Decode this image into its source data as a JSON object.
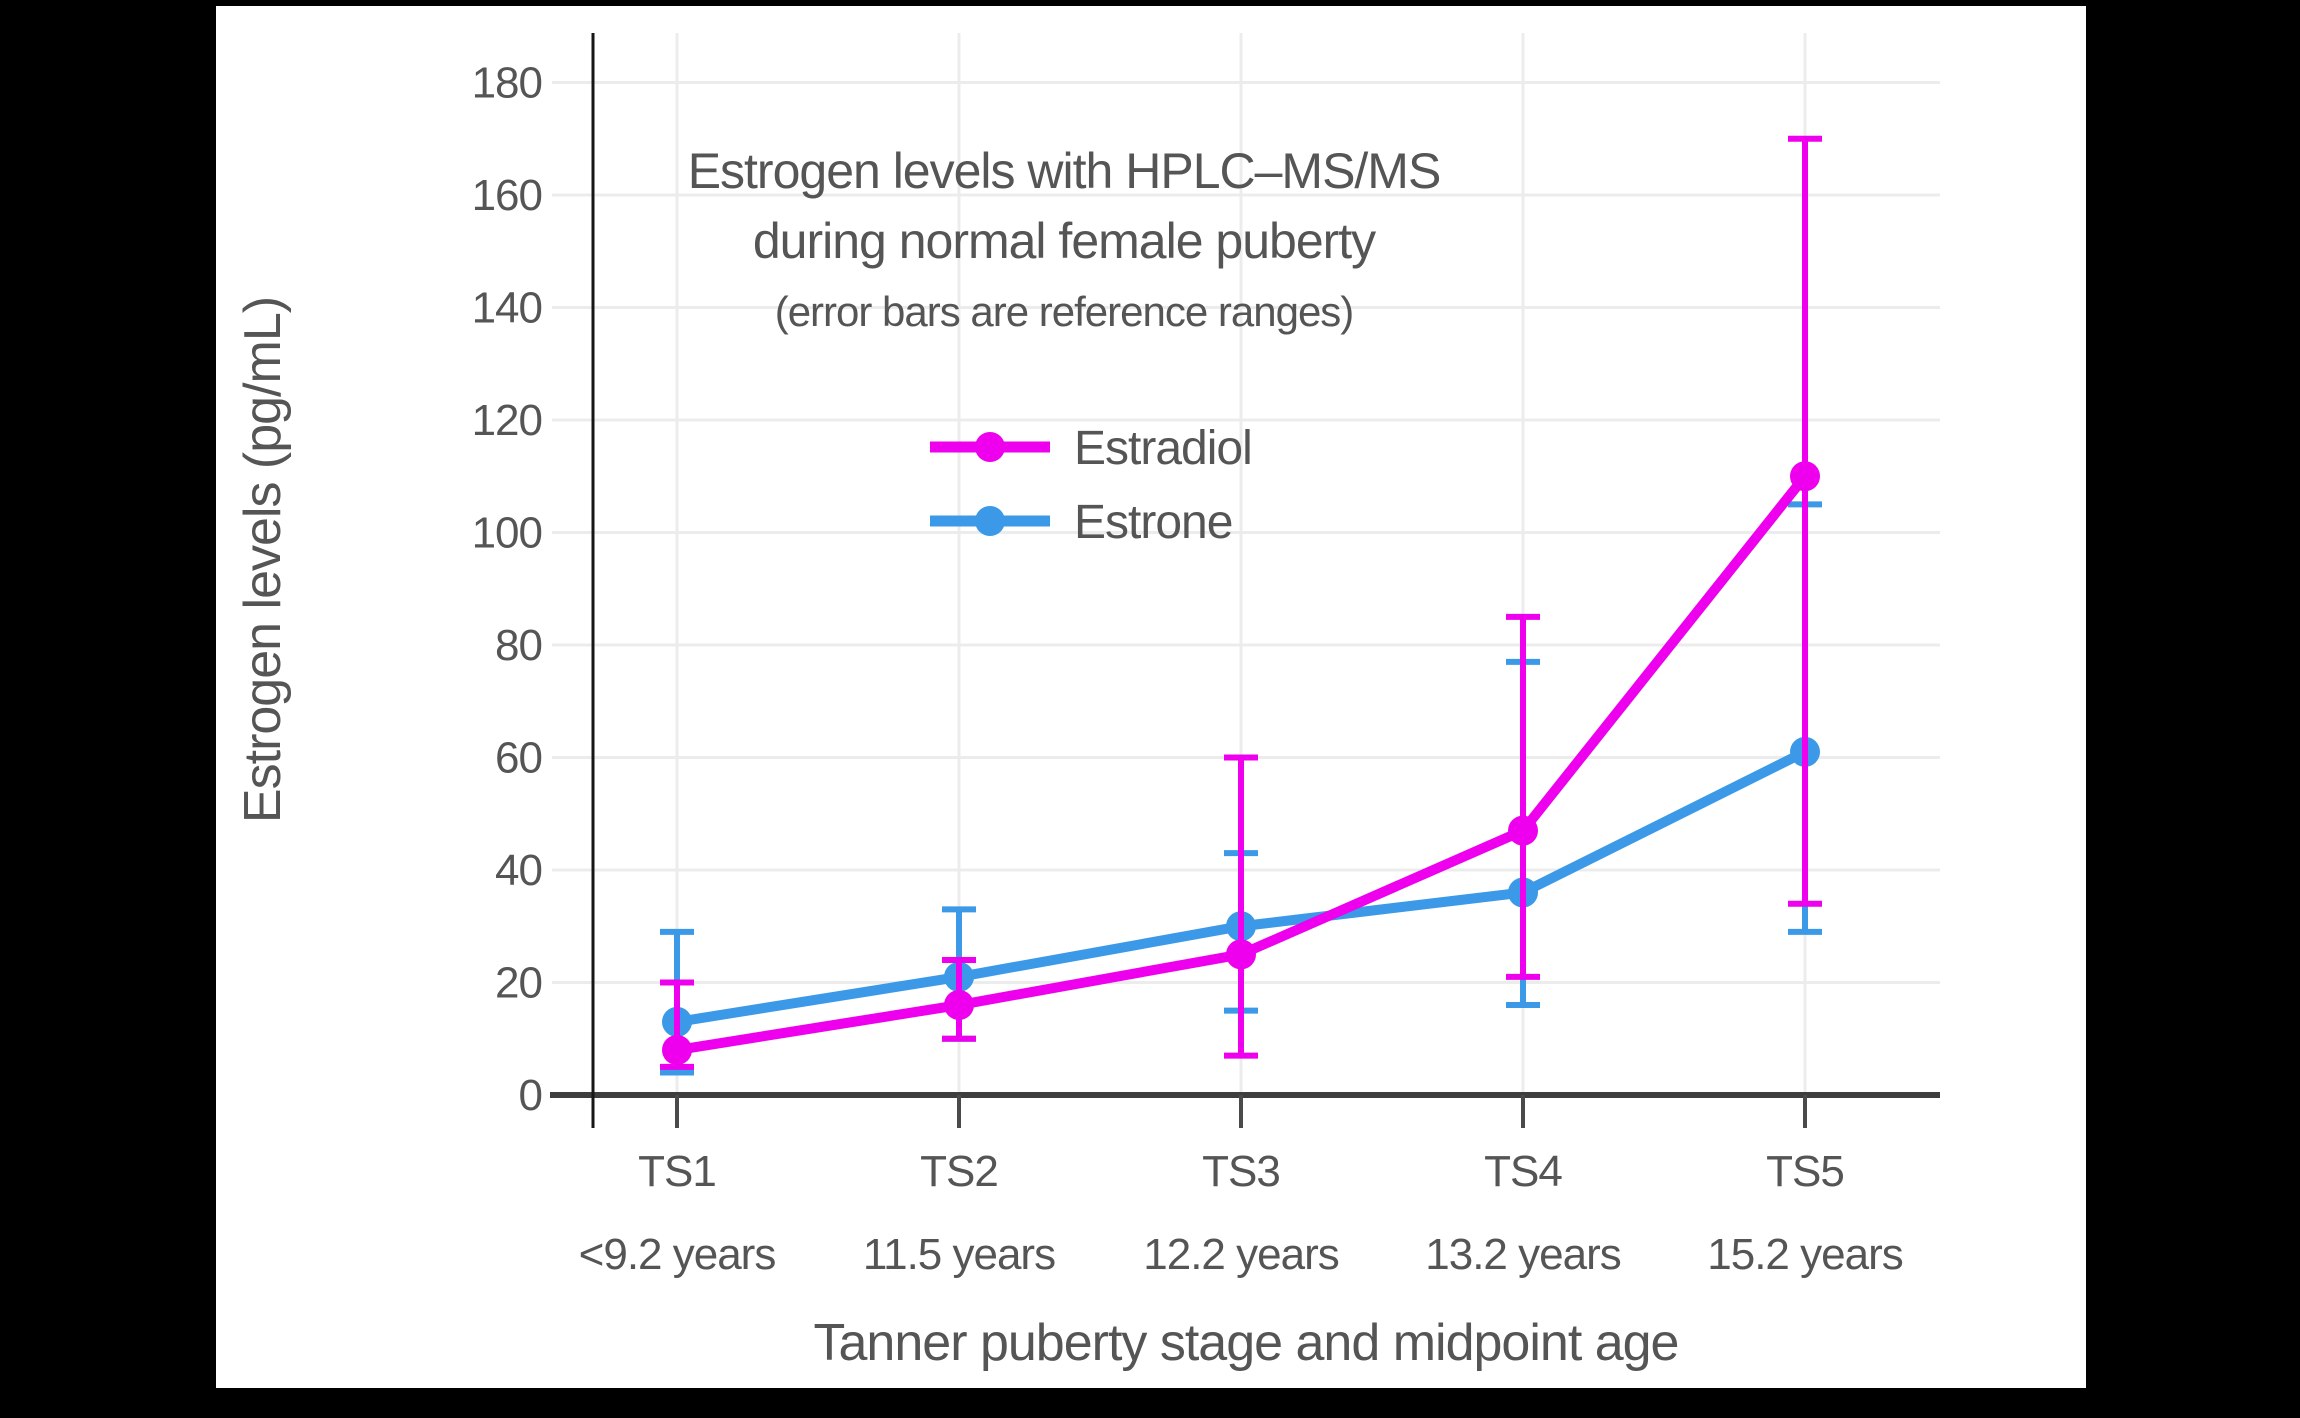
{
  "colors": {
    "background": "#000000",
    "canvas": "#ffffff",
    "text": "#555555",
    "axis": "#3e3e3e",
    "axis_line": "#161616",
    "tick": "#4a4a4a",
    "grid": "#ececec"
  },
  "legend": {
    "items": [
      {
        "label": "Estradiol"
      },
      {
        "label": "Estrone"
      }
    ]
  },
  "chart_data": {
    "type": "line",
    "title": "Estrogen levels with HPLC–MS/MS",
    "title_line2": "during normal female puberty",
    "subtitle": "(error bars are reference ranges)",
    "xlabel": "Tanner puberty stage and midpoint age",
    "ylabel": "Estrogen levels (pg/mL)",
    "categories": [
      "TS1",
      "TS2",
      "TS3",
      "TS4",
      "TS5"
    ],
    "category_sublabels": [
      "<9.2 years",
      "11.5 years",
      "12.2 years",
      "13.2 years",
      "15.2 years"
    ],
    "ylim": [
      0,
      190
    ],
    "yticks": [
      0,
      20,
      40,
      60,
      80,
      100,
      120,
      140,
      160,
      180
    ],
    "grid": true,
    "legend_position": "upper-center-inside",
    "error_bars": "reference ranges",
    "series": [
      {
        "name": "Estrone",
        "color": "#3B99E8",
        "values": [
          13,
          21,
          30,
          36,
          61
        ],
        "error_low": [
          4,
          10,
          15,
          16,
          29
        ],
        "error_high": [
          29,
          33,
          43,
          77,
          105
        ]
      },
      {
        "name": "Estradiol",
        "color": "#EE00EE",
        "values": [
          8,
          16,
          25,
          47,
          110
        ],
        "error_low": [
          5,
          10,
          7,
          21,
          34
        ],
        "error_high": [
          20,
          24,
          60,
          85,
          170
        ]
      }
    ]
  }
}
